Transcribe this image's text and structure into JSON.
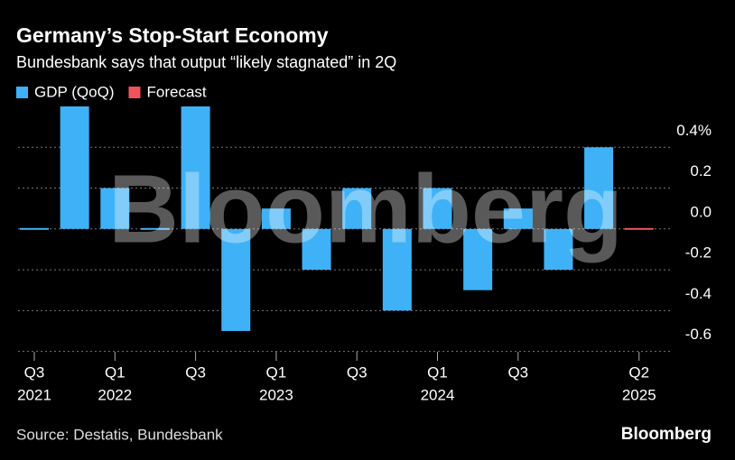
{
  "chart_data": {
    "type": "bar",
    "title": "Germany’s Stop-Start Economy",
    "subtitle": "Bundesbank says that output “likely stagnated” in 2Q",
    "categories": [
      "Q3",
      null,
      "Q1",
      null,
      "Q3",
      null,
      "Q1",
      null,
      "Q3",
      null,
      "Q1",
      null,
      "Q3",
      null,
      null,
      "Q2"
    ],
    "years": [
      "2021",
      null,
      "2022",
      null,
      null,
      null,
      "2023",
      null,
      null,
      null,
      "2024",
      null,
      null,
      null,
      null,
      "2025"
    ],
    "series": [
      {
        "name": "GDP (QoQ)",
        "color": "#3fb1f7",
        "values": [
          0.0,
          0.6,
          0.2,
          0.0,
          0.6,
          -0.5,
          0.1,
          -0.2,
          0.2,
          -0.4,
          0.2,
          -0.3,
          0.1,
          -0.2,
          0.4,
          null
        ]
      },
      {
        "name": "Forecast",
        "color": "#f0545a",
        "values": [
          null,
          null,
          null,
          null,
          null,
          null,
          null,
          null,
          null,
          null,
          null,
          null,
          null,
          null,
          null,
          0.0
        ]
      }
    ],
    "ylim": [
      -0.6,
      0.6
    ],
    "yticks": [
      {
        "value": 0.4,
        "label": "0.4%"
      },
      0.2,
      {
        "value": 0,
        "label": "0.0"
      },
      -0.2,
      -0.4,
      -0.6
    ],
    "grid": true,
    "source": "Source: Destatis, Bundesbank",
    "watermark": "Bloomberg",
    "brand": "Bloomberg"
  }
}
